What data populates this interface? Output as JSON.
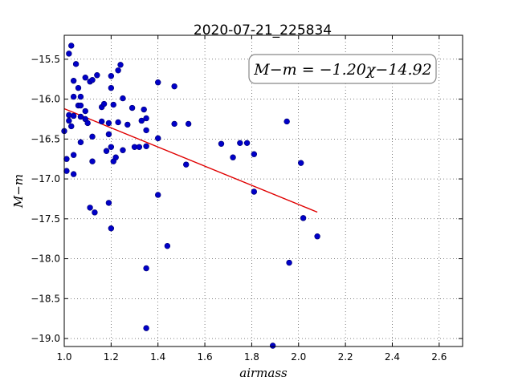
{
  "chart_data": {
    "type": "scatter",
    "title": "2020-07-21_225834",
    "xlabel": "airmass",
    "ylabel": "M−m",
    "xlim": [
      1.0,
      2.7
    ],
    "ylim": [
      -19.1,
      -15.2
    ],
    "y_inverted": true,
    "grid": true,
    "xticks": [
      1.0,
      1.2,
      1.4,
      1.6,
      1.8,
      2.0,
      2.2,
      2.4,
      2.6
    ],
    "xtick_labels": [
      "1.0",
      "1.2",
      "1.4",
      "1.6",
      "1.8",
      "2.0",
      "2.2",
      "2.4",
      "2.6"
    ],
    "yticks": [
      -15.5,
      -16.0,
      -16.5,
      -17.0,
      -17.5,
      -18.0,
      -18.5,
      -19.0
    ],
    "ytick_labels": [
      "−15.5",
      "−16.0",
      "−16.5",
      "−17.0",
      "−17.5",
      "−18.0",
      "−18.5",
      "−19.0"
    ],
    "annotation": "M−m = −1.20χ−14.92",
    "fit": {
      "slope": -1.2,
      "intercept": -14.92,
      "x_range": [
        1.0,
        2.08
      ],
      "color": "#e00000"
    },
    "marker_color": "#0000c8",
    "points": [
      [
        1.02,
        -15.43
      ],
      [
        1.03,
        -15.33
      ],
      [
        1.05,
        -15.56
      ],
      [
        1.04,
        -15.77
      ],
      [
        1.06,
        -15.86
      ],
      [
        1.04,
        -15.97
      ],
      [
        1.07,
        -15.97
      ],
      [
        1.06,
        -16.08
      ],
      [
        1.07,
        -16.08
      ],
      [
        1.09,
        -15.73
      ],
      [
        1.11,
        -15.78
      ],
      [
        1.12,
        -15.76
      ],
      [
        1.14,
        -15.7
      ],
      [
        1.09,
        -16.15
      ],
      [
        1.02,
        -16.2
      ],
      [
        1.04,
        -16.21
      ],
      [
        1.07,
        -16.22
      ],
      [
        1.09,
        -16.25
      ],
      [
        1.02,
        -16.27
      ],
      [
        1.03,
        -16.34
      ],
      [
        1.0,
        -16.4
      ],
      [
        1.1,
        -16.3
      ],
      [
        1.07,
        -16.54
      ],
      [
        1.12,
        -16.47
      ],
      [
        1.04,
        -16.7
      ],
      [
        1.01,
        -16.75
      ],
      [
        1.12,
        -16.78
      ],
      [
        1.01,
        -16.9
      ],
      [
        1.04,
        -16.94
      ],
      [
        1.16,
        -16.1
      ],
      [
        1.17,
        -16.06
      ],
      [
        1.16,
        -16.28
      ],
      [
        1.19,
        -16.3
      ],
      [
        1.18,
        -16.65
      ],
      [
        1.19,
        -16.44
      ],
      [
        1.2,
        -15.71
      ],
      [
        1.2,
        -15.86
      ],
      [
        1.21,
        -16.07
      ],
      [
        1.23,
        -15.64
      ],
      [
        1.24,
        -15.57
      ],
      [
        1.25,
        -15.99
      ],
      [
        1.23,
        -16.29
      ],
      [
        1.27,
        -16.32
      ],
      [
        1.29,
        -16.11
      ],
      [
        1.2,
        -16.6
      ],
      [
        1.22,
        -16.73
      ],
      [
        1.21,
        -16.78
      ],
      [
        1.25,
        -16.64
      ],
      [
        1.3,
        -16.6
      ],
      [
        1.32,
        -16.6
      ],
      [
        1.33,
        -16.27
      ],
      [
        1.34,
        -16.13
      ],
      [
        1.35,
        -16.24
      ],
      [
        1.35,
        -16.39
      ],
      [
        1.35,
        -16.59
      ],
      [
        1.4,
        -15.79
      ],
      [
        1.4,
        -16.49
      ],
      [
        1.47,
        -15.84
      ],
      [
        1.47,
        -16.31
      ],
      [
        1.53,
        -16.31
      ],
      [
        1.52,
        -16.82
      ],
      [
        1.11,
        -17.36
      ],
      [
        1.13,
        -17.42
      ],
      [
        1.19,
        -17.3
      ],
      [
        1.2,
        -17.62
      ],
      [
        1.4,
        -17.2
      ],
      [
        1.35,
        -18.12
      ],
      [
        1.44,
        -17.84
      ],
      [
        1.35,
        -18.87
      ],
      [
        1.67,
        -16.56
      ],
      [
        1.72,
        -16.73
      ],
      [
        1.75,
        -16.55
      ],
      [
        1.78,
        -16.55
      ],
      [
        1.81,
        -16.69
      ],
      [
        1.81,
        -17.16
      ],
      [
        1.95,
        -16.28
      ],
      [
        2.01,
        -16.8
      ],
      [
        2.02,
        -17.49
      ],
      [
        1.96,
        -18.05
      ],
      [
        2.08,
        -17.72
      ],
      [
        1.89,
        -19.09
      ]
    ]
  }
}
